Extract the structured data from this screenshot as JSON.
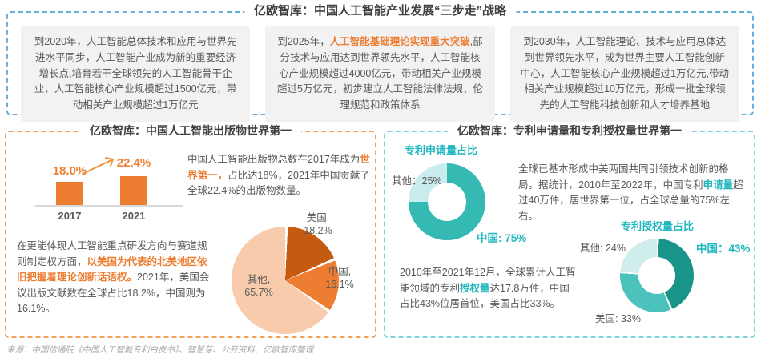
{
  "header": {
    "title": "亿欧智库：中国人工智能产业发展“三步走”战略",
    "milestones": [
      {
        "prefix": "到2020年，人工智能总体技术和应用与世界先进水平同步，人工智能产业成为新的重要经济增长点,培育若干全球领先的人工智能骨干企业，人工智能核心产业规模超过1500亿元，带动相关产业规模超过1万亿元",
        "highlight": "",
        "suffix": ""
      },
      {
        "prefix": "到2025年，",
        "highlight": "人工智能基础理论实现重大突破",
        "suffix": ",部分技术与应用达到世界领先水平，人工智能核心产业规模超过4000亿元，带动相关产业规模超过5万亿元，初步建立人工智能法律法规、伦理规范和政策体系"
      },
      {
        "prefix": "到2030年，人工智能理论、技术与应用总体达到世界领先水平，成为世界主要人工智能创新中心，人工智能核心产业规模超过1万亿元,带动相关产业规模超过10万亿元，形成一批全球领先的人工智能科技创新和人才培养基地",
        "highlight": "",
        "suffix": ""
      }
    ]
  },
  "left_section": {
    "title": "亿欧智库：中国人工智能出版物世界第一",
    "para1": {
      "prefix": "中国人工智能出版物总数在2017年成为",
      "highlight": "世界第一，",
      "suffix": "占比达18%，2021年中国贡献了全球22.4%的出版物数量。"
    },
    "para2": {
      "prefix": "在更能体现人工智能重点研发方向与赛道规则制定权方面，",
      "highlight": "以美国为代表的北美地区依旧把握着理论创新话语权。",
      "suffix": "2021年，美国会议出版文献数在全球占比18.2%，中国则为16.1%。"
    }
  },
  "right_section": {
    "title": "亿欧智库：专利申请量和专利授权量世界第一",
    "para1": {
      "prefix": "全球已基本形成中美两国共同引领技术创新的格局。据统计，2010年至2022年，中国专利",
      "highlight": "申请量",
      "suffix": "超过40万件，居世界第一位，占全球总量的75%左右。"
    },
    "para2": {
      "prefix": "2010年至2021年12月，全球累计人工智能领域的专利",
      "highlight": "授权量",
      "suffix": "达17.8万件，中国占比43%位居首位，美国占比33%。"
    }
  },
  "chart_data": [
    {
      "type": "bar",
      "title": "中国人工智能出版物全球占比",
      "categories": [
        "2017",
        "2021"
      ],
      "values": [
        18.0,
        22.4
      ],
      "value_labels": [
        "18.0%",
        "22.4%"
      ],
      "bar_color": "#ED7D31",
      "ylim": [
        0,
        25
      ],
      "grid": false
    },
    {
      "type": "pie",
      "title": "2021年全球会议出版文献占比",
      "slices": [
        {
          "name": "美国",
          "label_line1": "美国,",
          "label_line2": "18.2%",
          "value": 18.2,
          "color": "#C55A11"
        },
        {
          "name": "中国",
          "label_line1": "中国,",
          "label_line2": "16.1%",
          "value": 16.1,
          "color": "#ED7D31"
        },
        {
          "name": "其他",
          "label_line1": "其他,",
          "label_line2": "65.7%",
          "value": 65.7,
          "color": "#F8CBAD"
        }
      ]
    },
    {
      "type": "donut",
      "title": "专利申请量占比",
      "slices": [
        {
          "name": "中国",
          "label": "中国: 75%",
          "value": 75,
          "color": "#35B9B3"
        },
        {
          "name": "其他",
          "label": "其他：25%",
          "value": 25,
          "color": "#C9ECEE"
        }
      ]
    },
    {
      "type": "donut",
      "title": "专利授权量占比",
      "slices": [
        {
          "name": "中国",
          "label": "中国：43%",
          "value": 43,
          "color": "#189489"
        },
        {
          "name": "美国",
          "label": "美国: 33%",
          "value": 33,
          "color": "#4BC2BC"
        },
        {
          "name": "其他",
          "label": "其他: 24%",
          "value": 24,
          "color": "#CFEEEB"
        }
      ]
    }
  ],
  "footer": {
    "source": "来源：中国信通院《中国人工智能专利白皮书》、智慧芽、公开资料、亿欧智库整理"
  },
  "colors": {
    "accent_orange": "#ED7D31",
    "accent_cyan": "#20B7BE",
    "dash_blue": "#66AEDC",
    "dash_orange": "#F2A15F",
    "dash_cyan": "#7AD5DB"
  }
}
